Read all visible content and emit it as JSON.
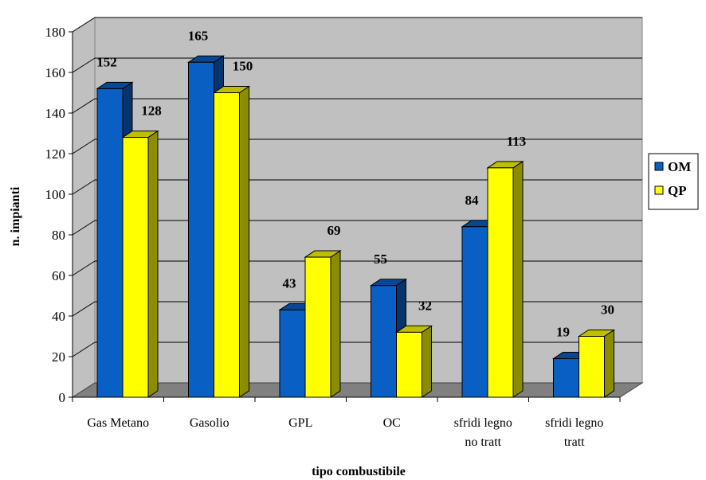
{
  "chart_data": {
    "type": "bar",
    "title": "",
    "xlabel": "tipo combustibile",
    "ylabel": "n. impianti",
    "ylim": [
      0,
      180
    ],
    "yticks": [
      0,
      20,
      40,
      60,
      80,
      100,
      120,
      140,
      160,
      180
    ],
    "grid": true,
    "legend_position": "right",
    "categories": [
      [
        "Gas Metano"
      ],
      [
        "Gasolio"
      ],
      [
        "GPL"
      ],
      [
        "OC"
      ],
      [
        "sfridi legno",
        "no tratt"
      ],
      [
        "sfridi legno",
        "tratt"
      ]
    ],
    "series": [
      {
        "name": "OM",
        "color": "#0a5fc4",
        "values": [
          152,
          165,
          43,
          55,
          84,
          19
        ]
      },
      {
        "name": "QP",
        "color": "#ffff00",
        "values": [
          128,
          150,
          69,
          32,
          113,
          30
        ]
      }
    ]
  }
}
